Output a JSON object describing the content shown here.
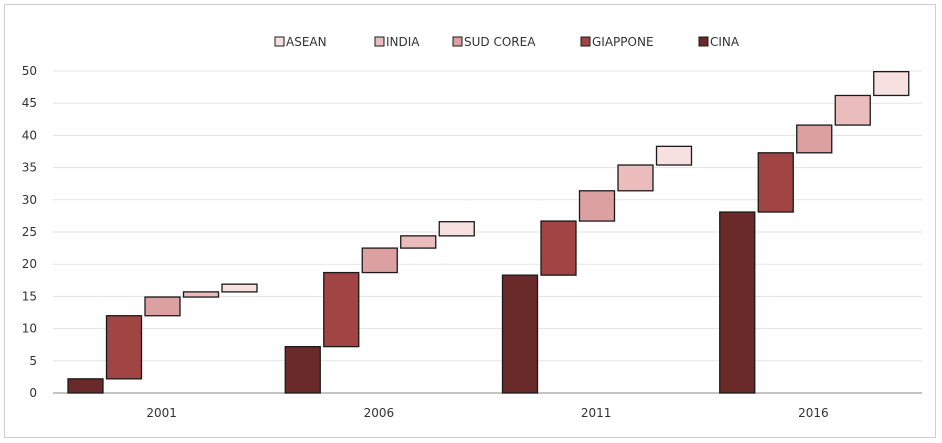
{
  "chart_data": {
    "type": "bar",
    "subtype": "stacked-waterfall",
    "title": "",
    "xlabel": "",
    "ylabel": "",
    "categories": [
      "2001",
      "2006",
      "2011",
      "2016"
    ],
    "series": [
      {
        "name": "CINA",
        "color": "#6b2a2a",
        "values": [
          2.2,
          7.2,
          18.3,
          28.1
        ]
      },
      {
        "name": "GIAPPONE",
        "color": "#a04444",
        "values": [
          9.8,
          11.5,
          8.4,
          9.2
        ]
      },
      {
        "name": "SUD COREA",
        "color": "#dda0a0",
        "values": [
          2.9,
          3.8,
          4.7,
          4.3
        ]
      },
      {
        "name": "INDIA",
        "color": "#ebbcbc",
        "values": [
          0.8,
          1.9,
          4.0,
          4.6
        ]
      },
      {
        "name": "ASEAN",
        "color": "#f6e0e0",
        "values": [
          1.2,
          2.2,
          2.9,
          3.7
        ]
      }
    ],
    "legend_order": [
      "ASEAN",
      "INDIA",
      "SUD COREA",
      "GIAPPONE",
      "CINA"
    ],
    "ylim": [
      0,
      50
    ],
    "yticks": [
      0,
      5,
      10,
      15,
      20,
      25,
      30,
      35,
      40,
      45,
      50
    ],
    "grid": true,
    "legend_position": "top"
  }
}
